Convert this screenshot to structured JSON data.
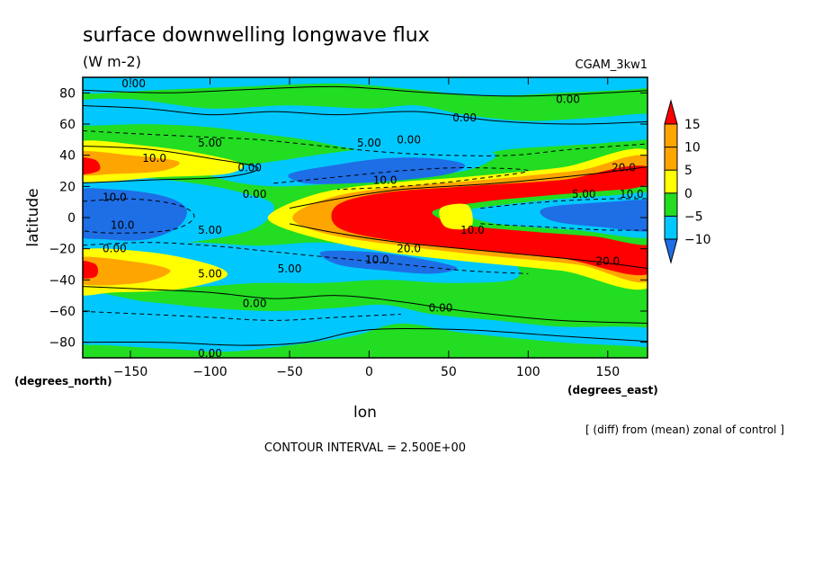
{
  "chart_data": {
    "type": "heatmap",
    "title": "surface downwelling longwave flux",
    "units": "(W m-2)",
    "dataset": "CGAM_3kw1",
    "xlabel": "lon",
    "ylabel": "latitude",
    "x_units": "(degrees_east)",
    "y_units": "(degrees_north)",
    "xlim": [
      -180,
      175
    ],
    "ylim": [
      -90,
      90
    ],
    "x_ticks": [
      -150,
      -100,
      -50,
      0,
      50,
      100,
      150
    ],
    "x_tick_labels": [
      "−150",
      "−100",
      "−50",
      "0",
      "50",
      "100",
      "150"
    ],
    "y_ticks": [
      -80,
      -60,
      -40,
      -20,
      0,
      20,
      40,
      60,
      80
    ],
    "y_tick_labels": [
      "−80",
      "−60",
      "−40",
      "−20",
      "0",
      "20",
      "40",
      "60",
      "80"
    ],
    "footer_note": "[ (diff) from (mean) zonal of control ]",
    "contour_interval_text": "CONTOUR INTERVAL = 2.500E+00",
    "contour_interval": 2.5,
    "colorbar": {
      "levels": [
        -10,
        -5,
        0,
        5,
        10,
        15
      ],
      "labels": [
        "−10",
        "−5",
        "0",
        "5",
        "10",
        "15"
      ],
      "colors": [
        "#1e6ee6",
        "#00c8ff",
        "#22dd22",
        "#ffff00",
        "#ffa500",
        "#ff0000"
      ],
      "under_color": "#1e6ee6",
      "over_color": "#ff0000"
    },
    "contour_labels": [
      {
        "text": "0.00",
        "lon": -148,
        "lat": 86
      },
      {
        "text": "0.00",
        "lon": 125,
        "lat": 76
      },
      {
        "text": "0.00",
        "lon": 60,
        "lat": 64
      },
      {
        "text": "0.00",
        "lon": 25,
        "lat": 50
      },
      {
        "text": "5.00",
        "lon": -100,
        "lat": 48
      },
      {
        "text": "5.00",
        "lon": 0,
        "lat": 48
      },
      {
        "text": "10.0",
        "lon": -135,
        "lat": 38
      },
      {
        "text": "0.00",
        "lon": -75,
        "lat": 32
      },
      {
        "text": "10.0",
        "lon": 10,
        "lat": 24
      },
      {
        "text": "20.0",
        "lon": 160,
        "lat": 32
      },
      {
        "text": "0.00",
        "lon": -72,
        "lat": 15
      },
      {
        "text": "10.0",
        "lon": -160,
        "lat": 13
      },
      {
        "text": "5.00",
        "lon": 135,
        "lat": 15
      },
      {
        "text": "10.0",
        "lon": 165,
        "lat": 15
      },
      {
        "text": "10.0",
        "lon": -155,
        "lat": -5
      },
      {
        "text": "5.00",
        "lon": -100,
        "lat": -8
      },
      {
        "text": "10.0",
        "lon": 65,
        "lat": -8
      },
      {
        "text": "0.00",
        "lon": -160,
        "lat": -20
      },
      {
        "text": "20.0",
        "lon": 25,
        "lat": -20
      },
      {
        "text": "10.0",
        "lon": 5,
        "lat": -27
      },
      {
        "text": "20.0",
        "lon": 150,
        "lat": -28
      },
      {
        "text": "5.00",
        "lon": -50,
        "lat": -33
      },
      {
        "text": "5.00",
        "lon": -100,
        "lat": -36
      },
      {
        "text": "0.00",
        "lon": -72,
        "lat": -55
      },
      {
        "text": "0.00",
        "lon": 45,
        "lat": -58
      },
      {
        "text": "0.00",
        "lon": -100,
        "lat": -87
      }
    ]
  }
}
